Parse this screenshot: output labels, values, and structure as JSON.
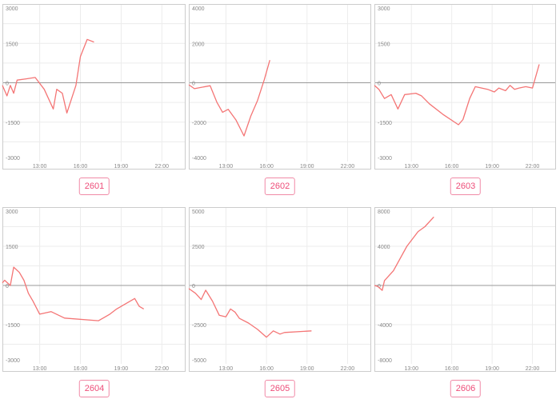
{
  "colors": {
    "line": "#f47575",
    "frame": "#cccccc",
    "grid": "#ececec",
    "zero": "#999999",
    "label": "#ee4d79"
  },
  "chart_data": [
    {
      "type": "line",
      "title": "2601",
      "ylim": [
        -3000,
        3000
      ],
      "yticks": [
        3000,
        1500,
        0,
        -1500,
        -3000
      ],
      "xlim": [
        10.25,
        23.75
      ],
      "xticks": [
        "13:00",
        "16:00",
        "19:00",
        "22:00"
      ],
      "x": [
        "10:15",
        "10:35",
        "10:50",
        "11:05",
        "11:20",
        "12:00",
        "12:40",
        "13:20",
        "14:00",
        "14:15",
        "14:40",
        "15:00",
        "15:40",
        "16:00",
        "16:30",
        "17:00",
        "17:30",
        "18:00"
      ],
      "y": [
        -100,
        -500,
        -100,
        -400,
        100,
        150,
        200,
        -250,
        -1000,
        -250,
        -400,
        -1150,
        -100,
        1000,
        1650,
        1550,
        null,
        null
      ]
    },
    {
      "type": "line",
      "title": "2602",
      "ylim": [
        -4000,
        4000
      ],
      "yticks": [
        4000,
        2000,
        0,
        -2000,
        -4000
      ],
      "xlim": [
        10.25,
        23.75
      ],
      "xticks": [
        "13:00",
        "16:00",
        "19:00",
        "22:00"
      ],
      "x": [
        "10:15",
        "10:40",
        "11:50",
        "12:20",
        "12:45",
        "13:10",
        "13:45",
        "14:20",
        "14:50",
        "15:20",
        "15:50",
        "16:15"
      ],
      "y": [
        -100,
        -300,
        -150,
        -1000,
        -1500,
        -1350,
        -1900,
        -2700,
        -1700,
        -900,
        150,
        1150
      ]
    },
    {
      "type": "line",
      "title": "2603",
      "ylim": [
        -3000,
        3000
      ],
      "yticks": [
        3000,
        1500,
        0,
        -1500,
        -3000
      ],
      "xlim": [
        10.25,
        23.75
      ],
      "xticks": [
        "13:00",
        "16:00",
        "19:00",
        "22:00"
      ],
      "x": [
        "10:15",
        "10:35",
        "11:00",
        "11:30",
        "12:00",
        "12:30",
        "13:20",
        "13:45",
        "14:20",
        "15:20",
        "16:30",
        "16:50",
        "17:20",
        "17:45",
        "18:40",
        "19:10",
        "19:30",
        "20:00",
        "20:20",
        "20:40",
        "21:00",
        "21:30",
        "22:00",
        "22:30"
      ],
      "y": [
        -100,
        -250,
        -600,
        -450,
        -1000,
        -450,
        -400,
        -500,
        -800,
        -1200,
        -1600,
        -1400,
        -600,
        -150,
        -250,
        -350,
        -200,
        -300,
        -100,
        -250,
        -200,
        -150,
        -200,
        700
      ]
    },
    {
      "type": "line",
      "title": "2604",
      "ylim": [
        -3000,
        3000
      ],
      "yticks": [
        3000,
        1500,
        0,
        -1500,
        -3000
      ],
      "xlim": [
        10.25,
        23.75
      ],
      "xticks": [
        "13:00",
        "16:00",
        "19:00",
        "22:00"
      ],
      "x": [
        "10:15",
        "10:25",
        "10:50",
        "11:05",
        "11:30",
        "11:50",
        "12:10",
        "12:30",
        "13:00",
        "13:50",
        "14:50",
        "17:20",
        "18:10",
        "18:40",
        "20:00",
        "20:20",
        "20:40",
        "21:00"
      ],
      "y": [
        100,
        200,
        0,
        700,
        500,
        200,
        -300,
        -600,
        -1100,
        -1000,
        -1250,
        -1350,
        -1100,
        -900,
        -500,
        -800,
        -900,
        null
      ]
    },
    {
      "type": "line",
      "title": "2605",
      "ylim": [
        -5000,
        5000
      ],
      "yticks": [
        5000,
        2500,
        0,
        -2500,
        -5000
      ],
      "xlim": [
        10.25,
        23.75
      ],
      "xticks": [
        "13:00",
        "16:00",
        "19:00",
        "22:00"
      ],
      "x": [
        "10:15",
        "10:45",
        "11:10",
        "11:30",
        "12:00",
        "12:30",
        "13:00",
        "13:20",
        "13:40",
        "14:00",
        "14:40",
        "15:20",
        "16:00",
        "16:30",
        "17:00",
        "17:20",
        "19:20"
      ],
      "y": [
        -200,
        -500,
        -900,
        -300,
        -1000,
        -1900,
        -2000,
        -1500,
        -1700,
        -2100,
        -2400,
        -2800,
        -3300,
        -2900,
        -3100,
        -3000,
        -2900
      ]
    },
    {
      "type": "line",
      "title": "2606",
      "ylim": [
        -8000,
        8000
      ],
      "yticks": [
        8000,
        4000,
        0,
        -4000,
        -8000
      ],
      "xlim": [
        10.25,
        23.75
      ],
      "xticks": [
        "13:00",
        "16:00",
        "19:00",
        "22:00"
      ],
      "x": [
        "10:15",
        "10:30",
        "10:50",
        "11:00",
        "11:40",
        "12:40",
        "13:30",
        "14:00",
        "14:40"
      ],
      "y": [
        0,
        -100,
        -500,
        500,
        1500,
        4000,
        5500,
        6000,
        7000
      ]
    }
  ],
  "labels": [
    "2601",
    "2602",
    "2603",
    "2604",
    "2605",
    "2606"
  ]
}
